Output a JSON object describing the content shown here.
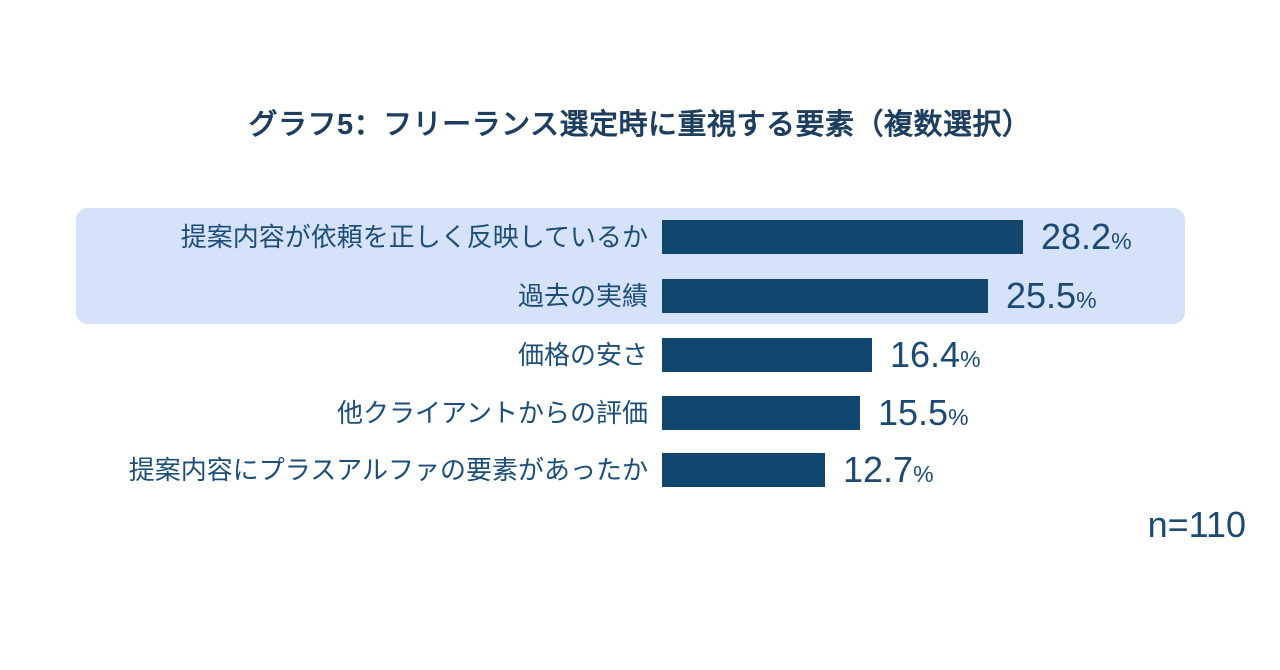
{
  "page": {
    "background_color": "#ffffff"
  },
  "header": {
    "title": "グラフ5：フリーランス選定時に重視する要素（複数選択）",
    "title_color": "#1e3e5f"
  },
  "footer": {
    "sample_size": "n=110"
  },
  "chart_data": {
    "type": "bar",
    "orientation": "horizontal",
    "title": "グラフ5：フリーランス選定時に重視する要素（複数選択）",
    "categories": [
      "提案内容が依頼を正しく反映しているか",
      "過去の実績",
      "価格の安さ",
      "他クライアントからの評価",
      "提案内容にプラスアルファの要素があったか"
    ],
    "values": [
      28.2,
      25.5,
      16.4,
      15.5,
      12.7
    ],
    "value_labels": [
      "28.2",
      "25.5",
      "16.4",
      "15.5",
      "12.7"
    ],
    "unit": "%",
    "sample_size": "n=110",
    "highlighted_rows": [
      0,
      1
    ],
    "xlim": [
      0,
      30
    ],
    "grid": false,
    "legend_position": "none",
    "bar_color": "#11466e",
    "highlight_color": "#d6e2fa",
    "label_color": "#1d4e78",
    "value_color": "#1d4a73"
  }
}
